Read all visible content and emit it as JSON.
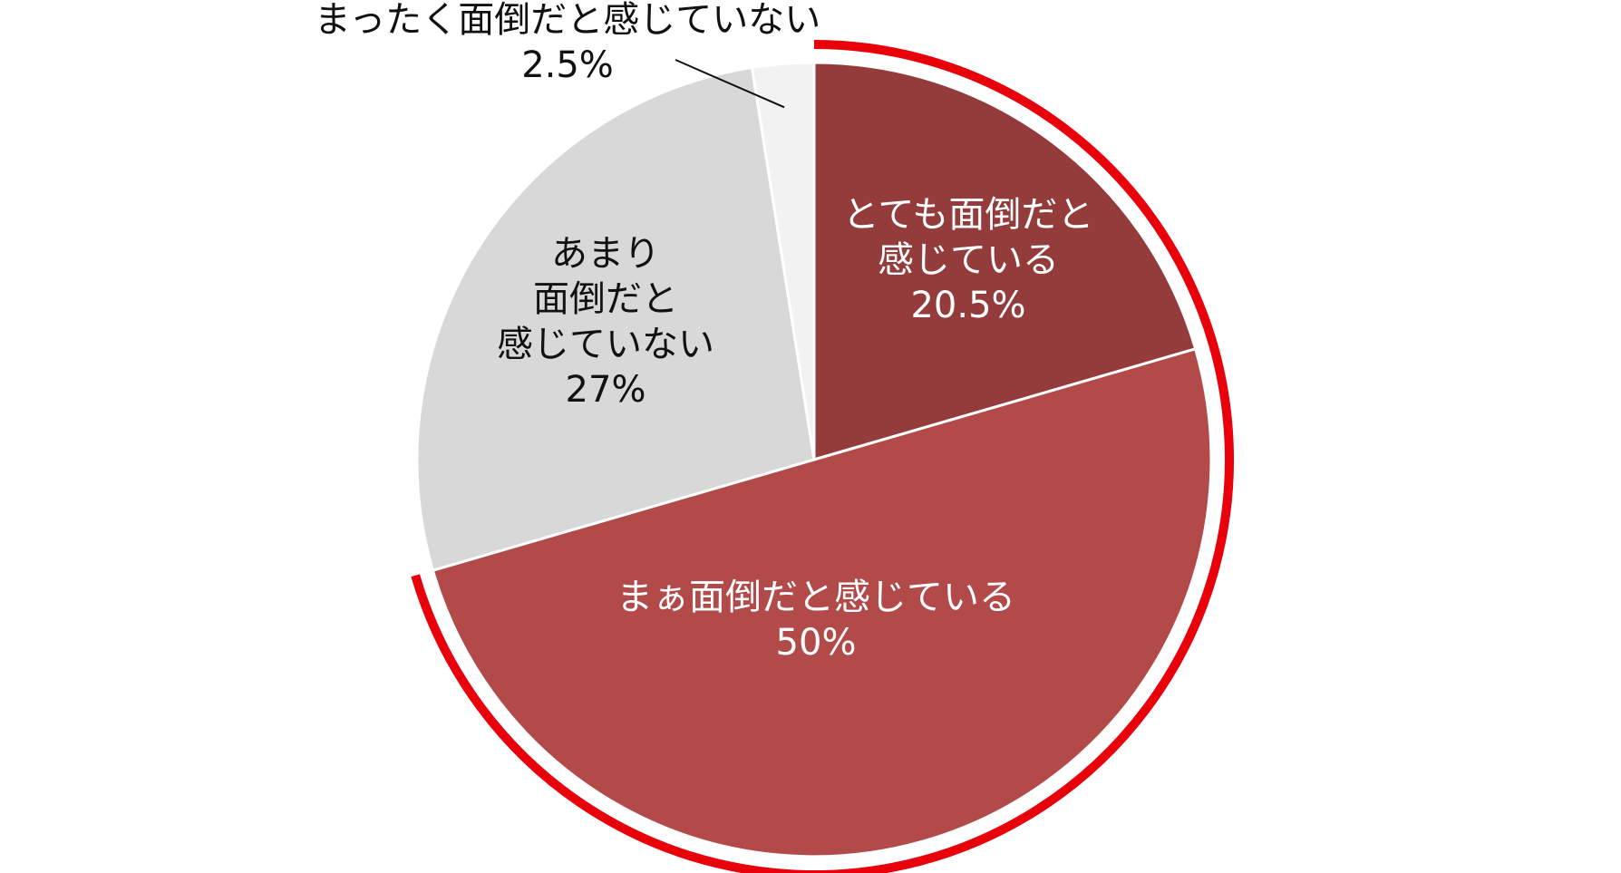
{
  "chart_data": {
    "type": "pie",
    "start_angle_deg": 0,
    "direction": "clockwise",
    "slices": [
      {
        "label_lines": [
          "とても面倒だと",
          "感じている"
        ],
        "value_label": "20.5%",
        "value": 20.5,
        "color": "#943b3b",
        "label_color": "light"
      },
      {
        "label_lines": [
          "まぁ面倒だと感じている"
        ],
        "value_label": "50%",
        "value": 50,
        "color": "#b24a4a",
        "label_color": "light"
      },
      {
        "label_lines": [
          "あまり",
          "面倒だと",
          "感じていない"
        ],
        "value_label": "27%",
        "value": 27,
        "color": "#d8d8d8",
        "label_color": "dark"
      },
      {
        "label_lines": [
          "まったく面倒だと感じていない"
        ],
        "value_label": "2.5%",
        "value": 2.5,
        "color": "#f2f2f2",
        "label_color": "dark",
        "outside": true
      }
    ],
    "highlight_arc": {
      "color": "#e8000b",
      "from_slice": 0,
      "to_slice": 1
    },
    "legend": "none"
  }
}
